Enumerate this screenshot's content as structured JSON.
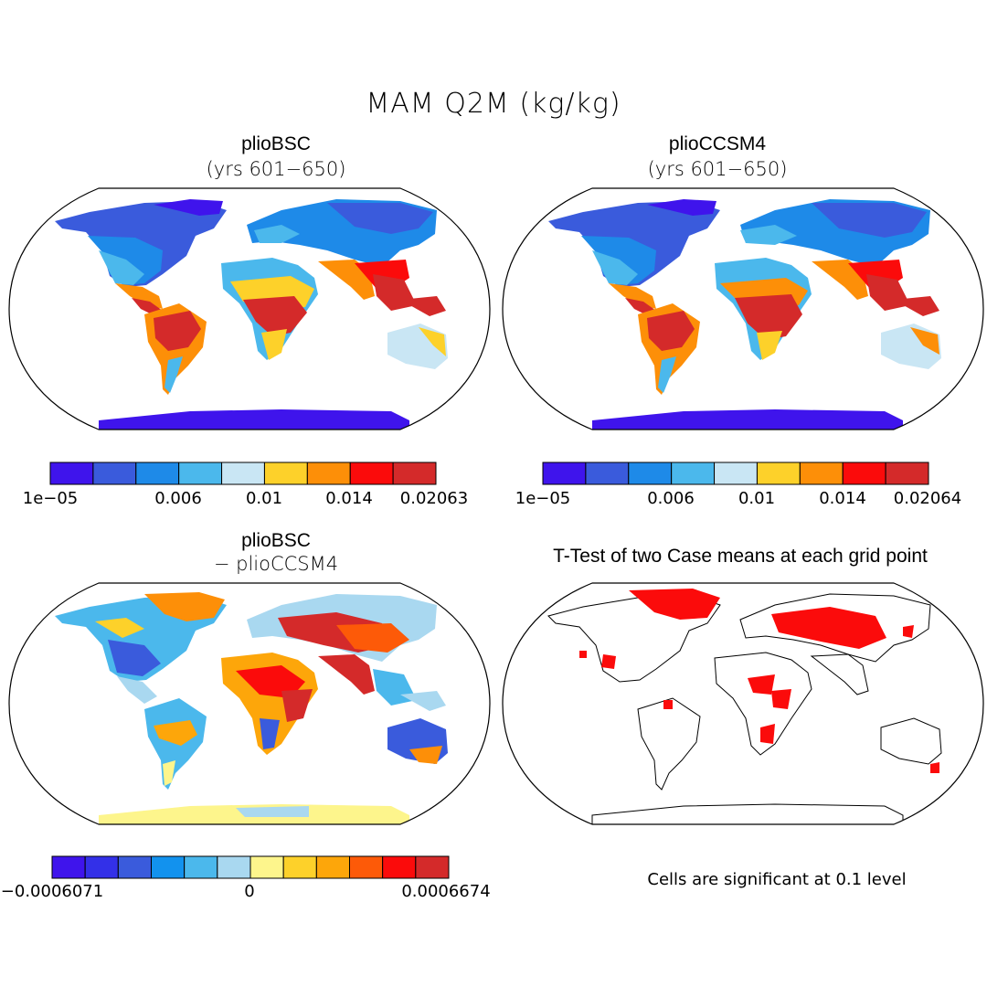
{
  "title": "MAM Q2M (kg/kg)",
  "panels": {
    "tl": {
      "title": "plioBSC",
      "subtitle": "(yrs 601−650)"
    },
    "tr": {
      "title": "plioCCSM4",
      "subtitle": "(yrs 601−650)"
    },
    "bl": {
      "title": "plioBSC",
      "subtitle": "− plioCCSM4"
    },
    "br": {
      "title": "T-Test of two Case means at each grid point"
    }
  },
  "colorbars": {
    "tl": {
      "colors": [
        "#3f14ec",
        "#3a5bdc",
        "#1e8ae8",
        "#4bb8ec",
        "#c9e6f4",
        "#fdd12a",
        "#fd8f08",
        "#fb0b0b",
        "#d42a2a"
      ],
      "labels": [
        "1e−05",
        "0.006",
        "0.01",
        "0.014",
        "0.02063"
      ]
    },
    "tr": {
      "colors": [
        "#3f14ec",
        "#3a5bdc",
        "#1e8ae8",
        "#4bb8ec",
        "#c9e6f4",
        "#fdd12a",
        "#fd8f08",
        "#fb0b0b",
        "#d42a2a"
      ],
      "labels": [
        "1e−05",
        "0.006",
        "0.01",
        "0.014",
        "0.02064"
      ]
    },
    "bl": {
      "colors": [
        "#3f14ec",
        "#3330e8",
        "#3a5bdc",
        "#1292ee",
        "#4bb8ec",
        "#a9d8f0",
        "#fdf58c",
        "#fdd12a",
        "#fda60a",
        "#fd5a08",
        "#fb0b0b",
        "#d42a2a"
      ],
      "labels": [
        "−0.0006071",
        "0",
        "0.0006674"
      ]
    }
  },
  "note": "Cells are significant at 0.1 level"
}
